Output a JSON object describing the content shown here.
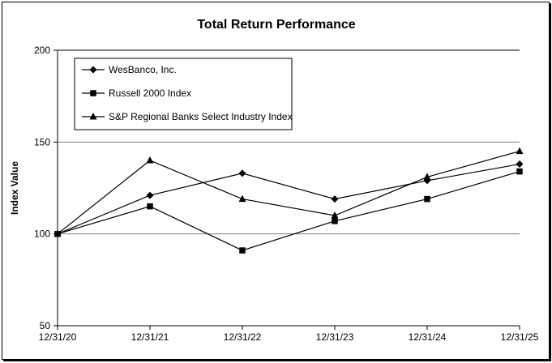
{
  "chart_data": {
    "type": "line",
    "title": "Total Return Performance",
    "xlabel": "",
    "ylabel": "Index Value",
    "categories": [
      "12/31/20",
      "12/31/21",
      "12/31/22",
      "12/31/23",
      "12/31/24",
      "12/31/25"
    ],
    "ylim": [
      50,
      200
    ],
    "yticks": [
      50,
      100,
      150,
      200
    ],
    "gridlines": [
      100,
      150
    ],
    "legend_position": "top-left",
    "series": [
      {
        "name": "WesBanco, Inc.",
        "marker": "diamond",
        "values": [
          100,
          121,
          133,
          119,
          129,
          138
        ]
      },
      {
        "name": "Russell 2000 Index",
        "marker": "square",
        "values": [
          100,
          115,
          91,
          107,
          119,
          134
        ]
      },
      {
        "name": "S&P Regional Banks Select Industry Index",
        "marker": "triangle",
        "values": [
          100,
          140,
          119,
          110,
          131,
          145
        ]
      }
    ],
    "colors": {
      "line": "#000000",
      "grid": "#808080",
      "background": "#ffffff"
    }
  }
}
